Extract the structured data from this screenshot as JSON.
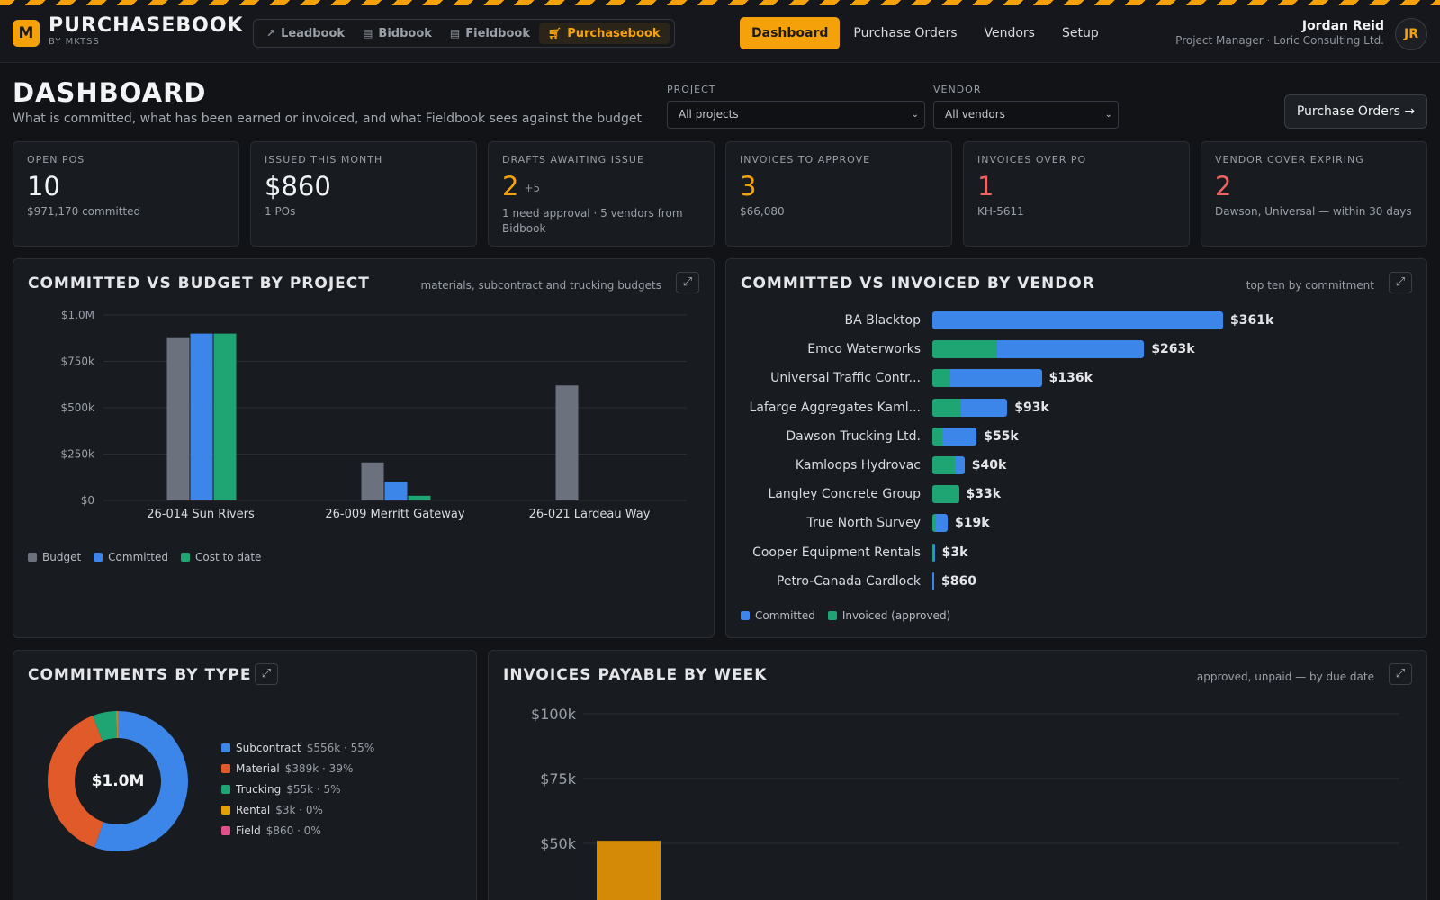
{
  "brand": {
    "logo_letter": "M",
    "name": "PURCHASEBOOK",
    "sub": "BY MKTSS"
  },
  "apps": [
    {
      "label": "Leadbook",
      "icon": "trend-icon"
    },
    {
      "label": "Bidbook",
      "icon": "document-icon"
    },
    {
      "label": "Fieldbook",
      "icon": "document-icon"
    },
    {
      "label": "Purchasebook",
      "icon": "cart-icon",
      "active": true
    }
  ],
  "nav": [
    {
      "label": "Dashboard",
      "active": true
    },
    {
      "label": "Purchase Orders"
    },
    {
      "label": "Vendors"
    },
    {
      "label": "Setup"
    }
  ],
  "user": {
    "name": "Jordan Reid",
    "role": "Project Manager · Loric Consulting Ltd.",
    "initials": "JR"
  },
  "header": {
    "title": "DASHBOARD",
    "subtitle": "What is committed, what has been earned or invoiced, and what Fieldbook sees against the budget",
    "project_label": "PROJECT",
    "project_value": "All projects",
    "vendor_label": "VENDOR",
    "vendor_value": "All vendors",
    "po_button": "Purchase Orders →"
  },
  "kpis": [
    {
      "label": "OPEN POS",
      "value": "10",
      "sub": "$971,170 committed",
      "tone": "normal"
    },
    {
      "label": "ISSUED THIS MONTH",
      "value": "$860",
      "sub": "1 POs",
      "tone": "normal"
    },
    {
      "label": "DRAFTS AWAITING ISSUE",
      "value": "2",
      "extra": "+5",
      "sub": "1 need approval · 5 vendors from Bidbook",
      "tone": "orange"
    },
    {
      "label": "INVOICES TO APPROVE",
      "value": "3",
      "sub": "$66,080",
      "tone": "orange"
    },
    {
      "label": "INVOICES OVER PO",
      "value": "1",
      "sub": "KH-5611",
      "tone": "red"
    },
    {
      "label": "VENDOR COVER EXPIRING",
      "value": "2",
      "sub": "Dawson, Universal — within 30 days",
      "tone": "red"
    }
  ],
  "panels": {
    "project": {
      "title": "COMMITTED VS BUDGET BY PROJECT",
      "note": "materials, subcontract and trucking budgets"
    },
    "vendor": {
      "title": "COMMITTED VS INVOICED BY VENDOR",
      "note": "top ten by commitment"
    },
    "type": {
      "title": "COMMITMENTS BY TYPE"
    },
    "weekly": {
      "title": "INVOICES PAYABLE BY WEEK",
      "note": "approved, unpaid — by due date"
    }
  },
  "chart_data": [
    {
      "type": "bar",
      "title": "COMMITTED VS BUDGET BY PROJECT",
      "categories": [
        "26-014 Sun Rivers",
        "26-009 Merritt Gateway",
        "26-021 Lardeau Way"
      ],
      "series": [
        {
          "name": "Budget",
          "color": "#6b727e",
          "values": [
            880000,
            205000,
            620000
          ]
        },
        {
          "name": "Committed",
          "color": "#3b86e8",
          "values": [
            900000,
            100000,
            0
          ]
        },
        {
          "name": "Cost to date",
          "color": "#1fa574",
          "values": [
            900000,
            25000,
            0
          ]
        }
      ],
      "ylim": [
        0,
        1000000
      ],
      "yticks": [
        "$1.0M",
        "$750k",
        "$500k",
        "$250k",
        "$0"
      ],
      "ytick_values": [
        1000000,
        750000,
        500000,
        250000,
        0
      ],
      "legend": "bottom-left"
    },
    {
      "type": "bar",
      "orientation": "horizontal",
      "title": "COMMITTED VS INVOICED BY VENDOR",
      "categories": [
        "BA Blacktop",
        "Emco Waterworks",
        "Universal Traffic Contr...",
        "Lafarge Aggregates Kaml...",
        "Dawson Trucking Ltd.",
        "Kamloops Hydrovac",
        "Langley Concrete Group",
        "True North Survey",
        "Cooper Equipment Rentals",
        "Petro-Canada Cardlock"
      ],
      "series": [
        {
          "name": "Committed",
          "color": "#3b86e8",
          "values": [
            361000,
            263000,
            136000,
            93000,
            55000,
            40000,
            33000,
            19000,
            3000,
            860
          ]
        },
        {
          "name": "Invoiced (approved)",
          "color": "#1fa574",
          "values": [
            0,
            81000,
            22000,
            36000,
            12000,
            28000,
            33000,
            5000,
            1000,
            0
          ]
        }
      ],
      "value_labels": [
        "$361k",
        "$263k",
        "$136k",
        "$93k",
        "$55k",
        "$40k",
        "$33k",
        "$19k",
        "$3k",
        "$860"
      ],
      "legend": "bottom-left"
    },
    {
      "type": "pie",
      "title": "COMMITMENTS BY TYPE",
      "center_label": "$1.0M",
      "slices": [
        {
          "name": "Subcontract",
          "value": 556000,
          "label": "$556k · 55%",
          "color": "#3b86e8"
        },
        {
          "name": "Material",
          "value": 389000,
          "label": "$389k · 39%",
          "color": "#e05a2a"
        },
        {
          "name": "Trucking",
          "value": 55000,
          "label": "$55k · 5%",
          "color": "#1fa574"
        },
        {
          "name": "Rental",
          "value": 3000,
          "label": "$3k · 0%",
          "color": "#e3a008"
        },
        {
          "name": "Field",
          "value": 860,
          "label": "$860 · 0%",
          "color": "#e0508a"
        }
      ]
    },
    {
      "type": "bar",
      "title": "INVOICES PAYABLE BY WEEK",
      "yticks": [
        "$100k",
        "$75k",
        "$50k"
      ],
      "ytick_values": [
        100000,
        75000,
        50000
      ],
      "ylim": [
        0,
        100000
      ],
      "series": [
        {
          "color": "#d48a06",
          "values": [
            51000
          ]
        }
      ]
    }
  ]
}
